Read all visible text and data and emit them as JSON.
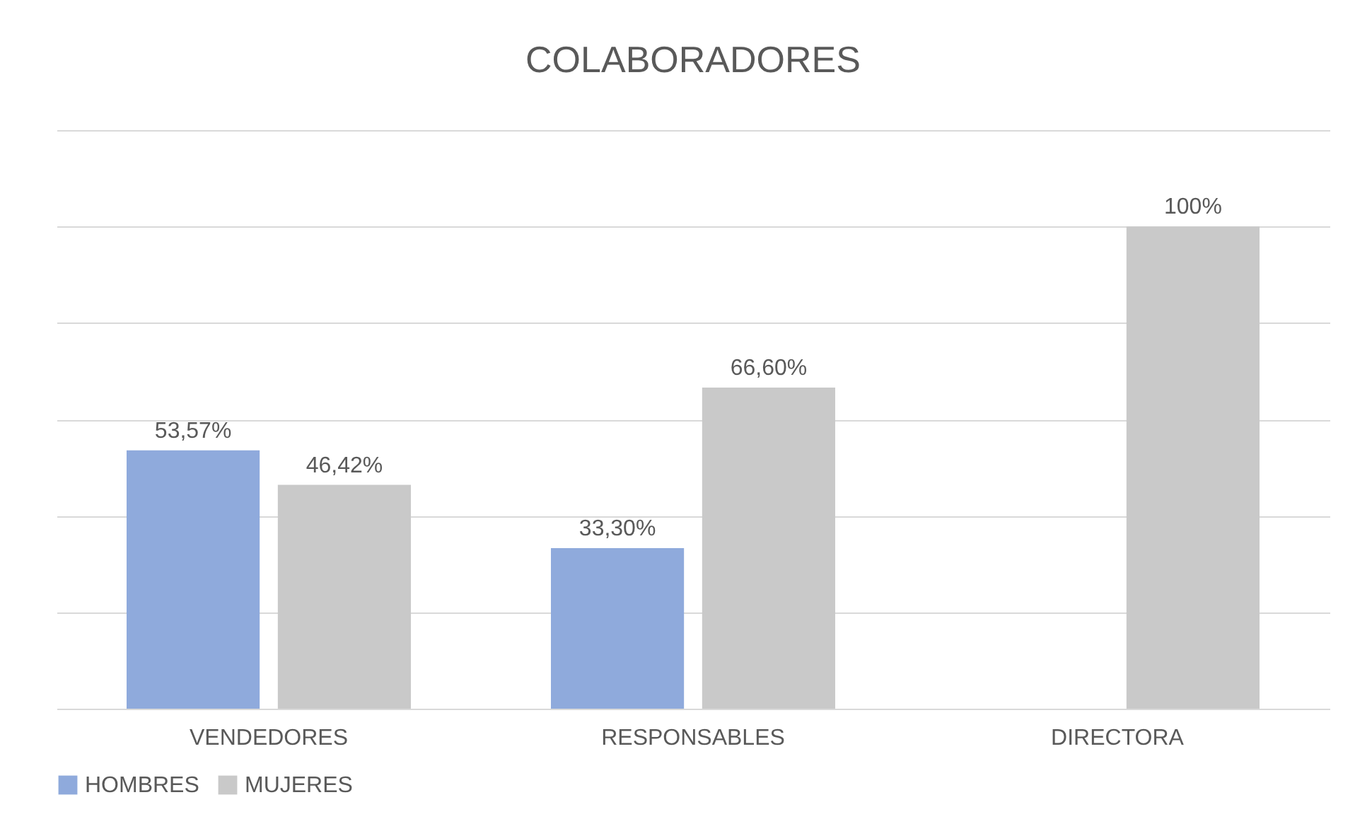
{
  "chart_data": {
    "type": "bar",
    "title": "COLABORADORES",
    "categories": [
      "VENDEDORES",
      "RESPONSABLES",
      "DIRECTORA"
    ],
    "series": [
      {
        "name": "HOMBRES",
        "color": "#8faadc",
        "values": [
          53.57,
          33.3,
          null
        ],
        "value_labels": [
          "53,57%",
          "33,30%",
          null
        ]
      },
      {
        "name": "MUJERES",
        "color": "#c9c9c9",
        "values": [
          46.42,
          66.6,
          100
        ],
        "value_labels": [
          "46,42%",
          "66,60%",
          "100%"
        ]
      }
    ],
    "ylim": [
      0,
      120
    ],
    "yticks": [
      {
        "value": 0,
        "label": null
      },
      {
        "value": 20,
        "label": null
      },
      {
        "value": 40,
        "label": null
      },
      {
        "value": 60,
        "label": null
      },
      {
        "value": 80,
        "label": null
      },
      {
        "value": 100,
        "label": null
      },
      {
        "value": 120,
        "label": null
      }
    ],
    "tick_labels": "x",
    "grid": "y",
    "legend": "bottom"
  }
}
